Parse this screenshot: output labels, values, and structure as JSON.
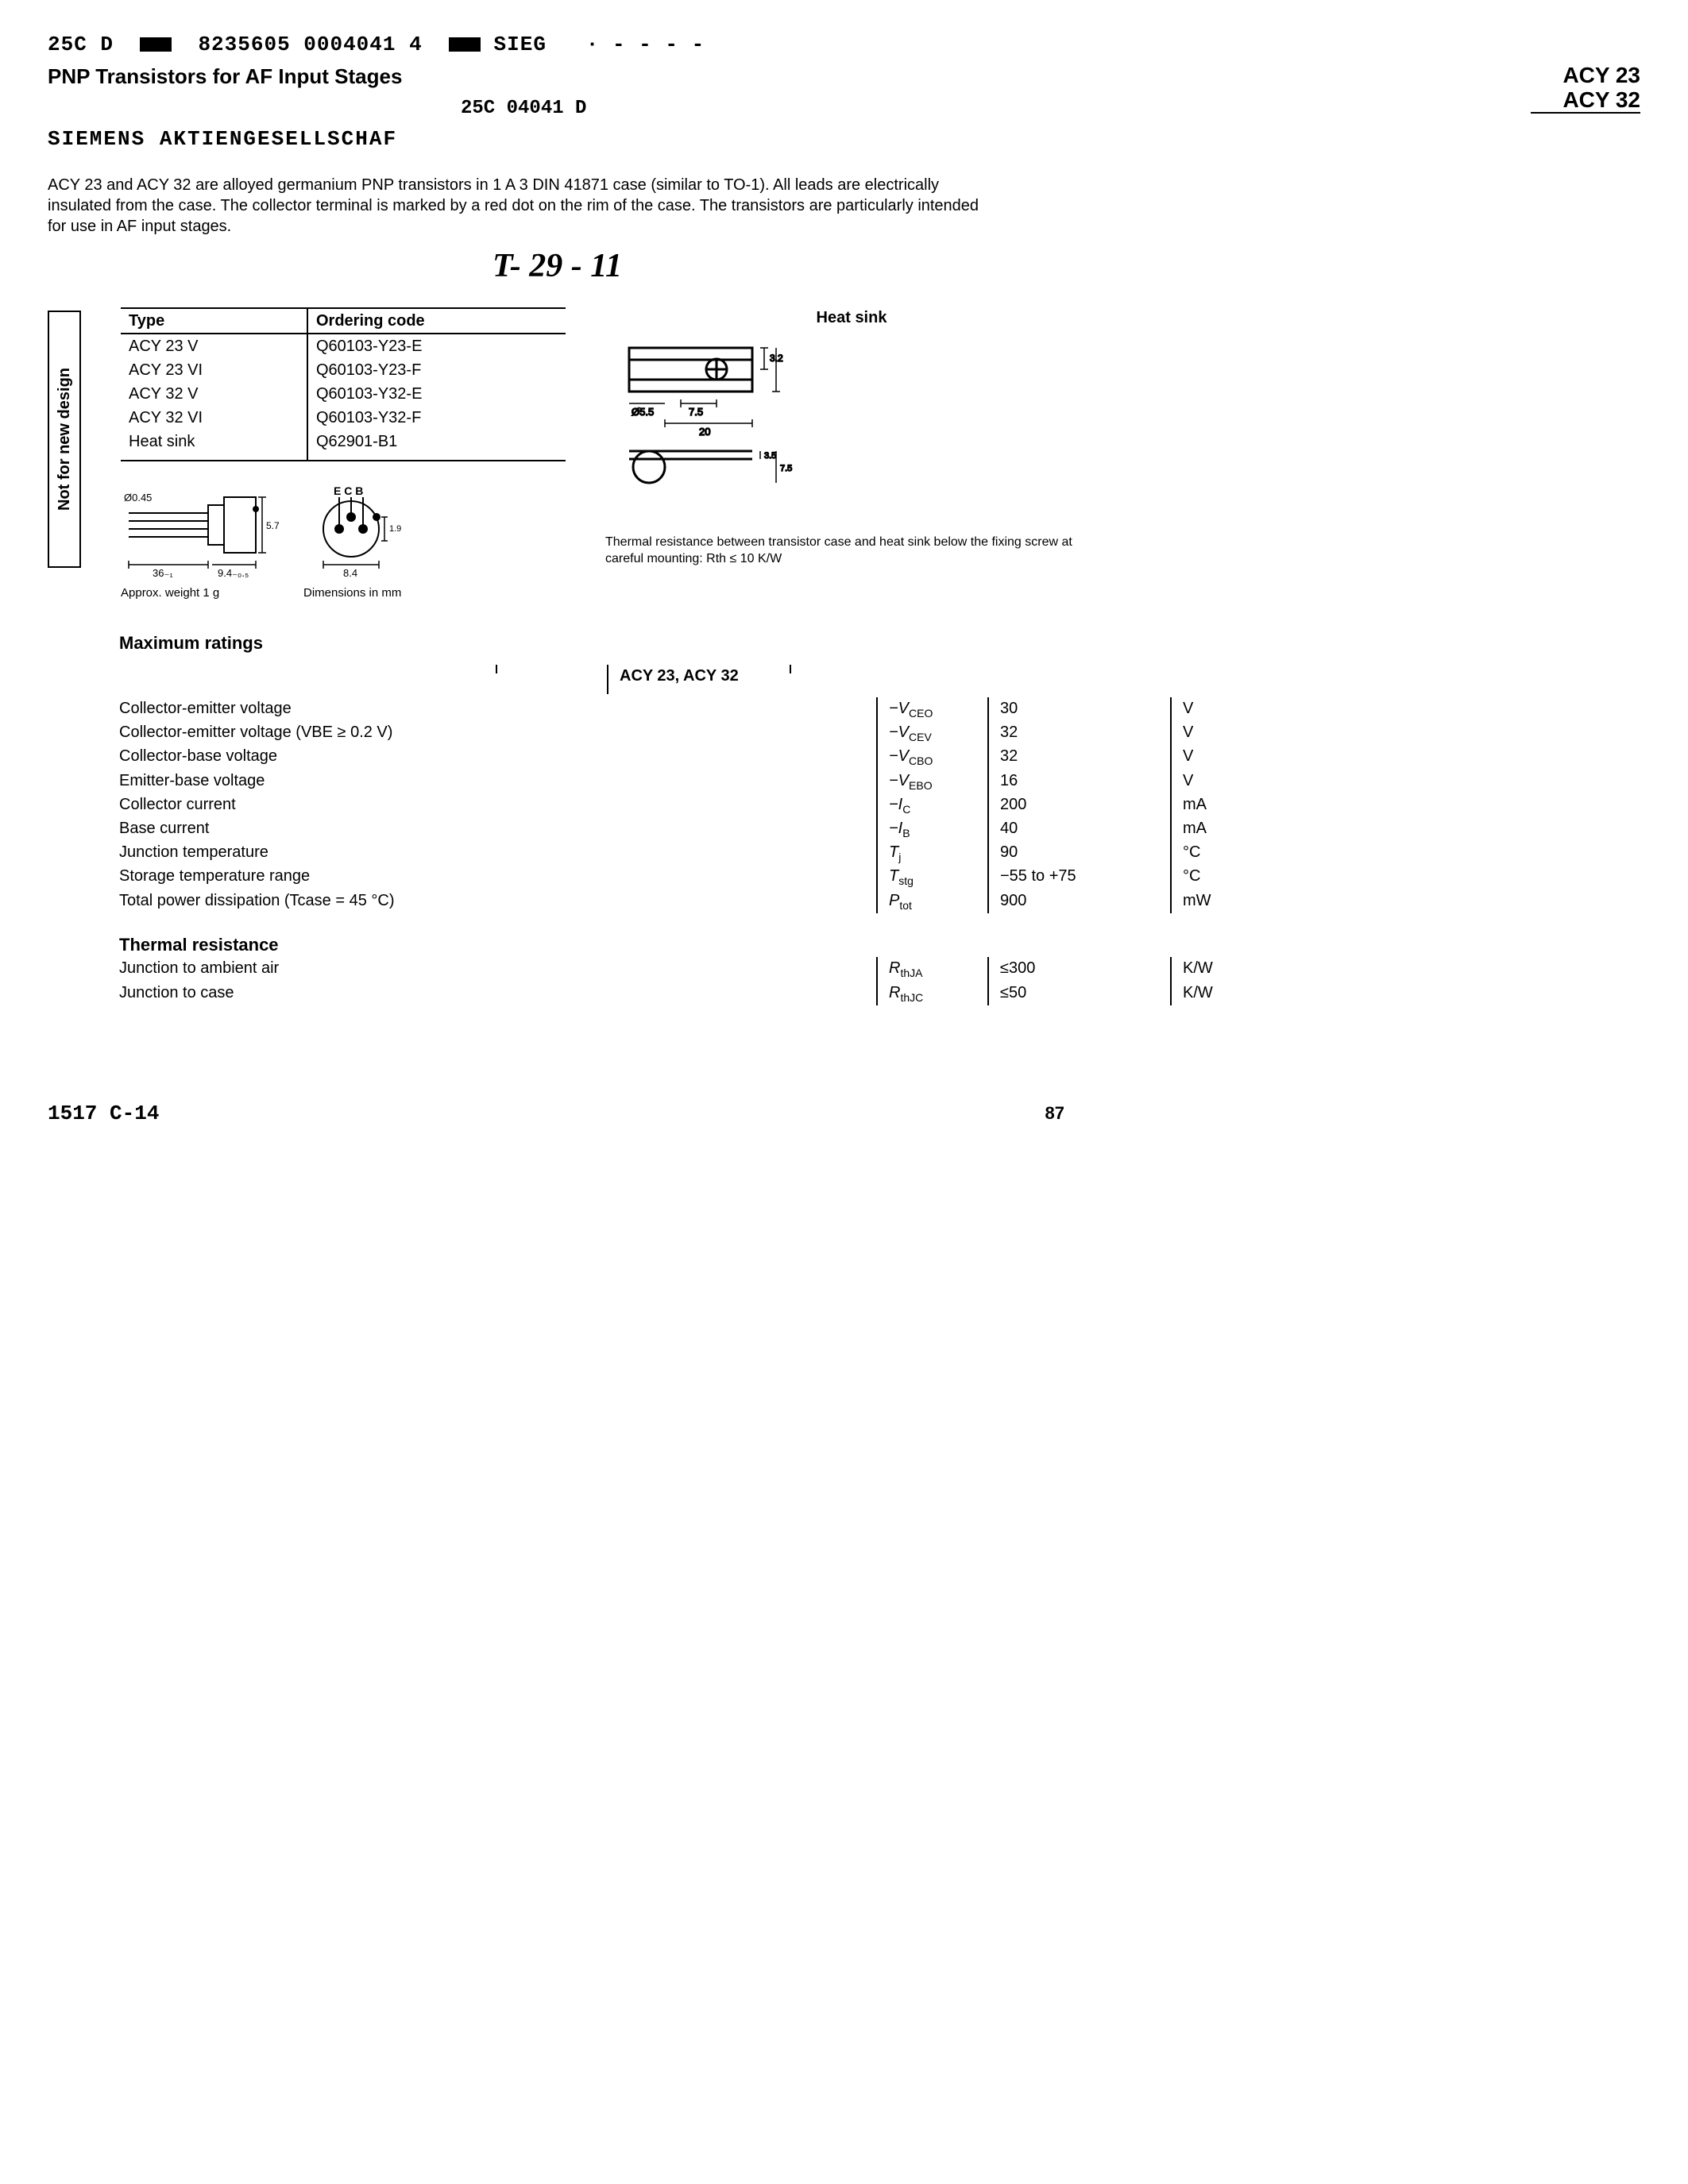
{
  "topcode_a": "25C D",
  "topcode_b": "8235605 0004041 4",
  "topcode_c": "SIEG",
  "title": "PNP Transistors for AF Input Stages",
  "part_a": "ACY 23",
  "part_b": "ACY 32",
  "subcode": "25C 04041    D",
  "company": "SIEMENS AKTIENGESELLSCHAF",
  "intro": "ACY 23 and ACY 32 are alloyed germanium PNP transistors in 1 A 3 DIN 41871 case (similar to TO-1). All leads are electrically insulated from the case. The collector terminal is marked by a red dot on the rim of the case. The transistors are particularly intended for use in AF input stages.",
  "handwritten": "T- 29 - 11",
  "sidebar": "Not for new design",
  "type_header_a": "Type",
  "type_header_b": "Ordering code",
  "types": [
    {
      "t": "ACY 23 V",
      "c": "Q60103-Y23-E"
    },
    {
      "t": "ACY 23 VI",
      "c": "Q60103-Y23-F"
    },
    {
      "t": "ACY 32 V",
      "c": "Q60103-Y32-E"
    },
    {
      "t": "ACY 32 VI",
      "c": "Q60103-Y32-F"
    },
    {
      "t": "Heat sink",
      "c": "Q62901-B1"
    }
  ],
  "dim_weight": "Approx. weight 1 g",
  "dim_mm": "Dimensions in mm",
  "heatsink_title": "Heat sink",
  "thermal_note": "Thermal resistance between transistor case and heat sink below the fixing screw at careful mounting: Rth ≤ 10 K/W",
  "max_title": "Maximum ratings",
  "max_header": "ACY 23, ACY 32",
  "ratings": [
    {
      "d": "Collector-emitter voltage",
      "s": "−V",
      "sub": "CEO",
      "v": "30",
      "u": "V"
    },
    {
      "d": "Collector-emitter voltage (VBE ≥ 0.2 V)",
      "s": "−V",
      "sub": "CEV",
      "v": "32",
      "u": "V"
    },
    {
      "d": "Collector-base voltage",
      "s": "−V",
      "sub": "CBO",
      "v": "32",
      "u": "V"
    },
    {
      "d": "Emitter-base voltage",
      "s": "−V",
      "sub": "EBO",
      "v": "16",
      "u": "V"
    },
    {
      "d": "Collector current",
      "s": "−I",
      "sub": "C",
      "v": "200",
      "u": "mA"
    },
    {
      "d": "Base current",
      "s": "−I",
      "sub": "B",
      "v": "40",
      "u": "mA"
    },
    {
      "d": "Junction temperature",
      "s": "T",
      "sub": "j",
      "v": "90",
      "u": "°C"
    },
    {
      "d": "Storage temperature range",
      "s": "T",
      "sub": "stg",
      "v": "−55 to +75",
      "u": "°C"
    },
    {
      "d": "Total power dissipation (Tcase = 45 °C)",
      "s": "P",
      "sub": "tot",
      "v": "900",
      "u": "mW"
    }
  ],
  "thermal_title": "Thermal resistance",
  "thermals": [
    {
      "d": "Junction to ambient air",
      "s": "R",
      "sub": "thJA",
      "v": "≤300",
      "u": "K/W"
    },
    {
      "d": "Junction to case",
      "s": "R",
      "sub": "thJC",
      "v": "≤50",
      "u": "K/W"
    }
  ],
  "foot_left": "1517     C-14",
  "foot_right": "87",
  "svg": {
    "pkg_side": {
      "dim1": "Ø0.45",
      "dim2": "36₋₁",
      "dim3": "9.4₋₀.₅",
      "dim4": "5.7₋₀.₂"
    },
    "pkg_top": {
      "labels": "E  C  B",
      "dim1": "1.9±0.3",
      "dim2": "8.4"
    },
    "heatsink": {
      "d1": "Ø5.5",
      "d2": "7.5",
      "d3": "20",
      "d4": "3.2",
      "d5": "3.5",
      "d6": "7.5"
    }
  }
}
